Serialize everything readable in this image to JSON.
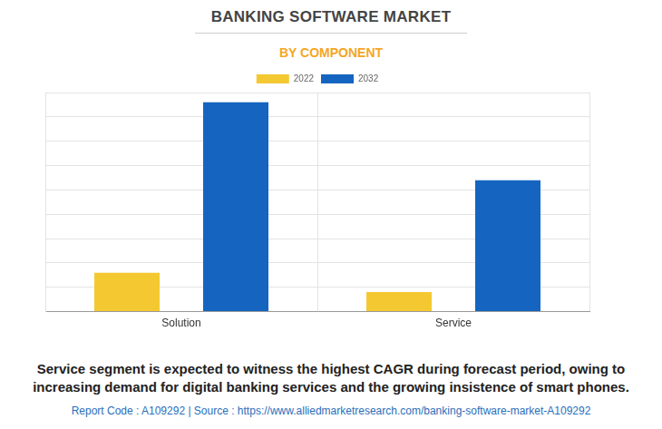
{
  "chart_data": {
    "type": "bar",
    "title": "BANKING SOFTWARE MARKET",
    "subtitle": "BY COMPONENT",
    "categories": [
      "Solution",
      "Service"
    ],
    "series": [
      {
        "name": "2022",
        "color": "#f4c831",
        "values": [
          1.6,
          0.8
        ]
      },
      {
        "name": "2032",
        "color": "#1565c0",
        "values": [
          8.6,
          5.4
        ]
      }
    ],
    "ylim": [
      0,
      9
    ],
    "yticks": [
      0,
      1,
      2,
      3,
      4,
      5,
      6,
      7,
      8,
      9
    ],
    "grid": true,
    "legend": "top",
    "tick_labels": "x",
    "caption": "Service segment is expected to witness the highest CAGR during forecast period, owing to increasing demand for digital banking services and the growing insistence of smart phones.",
    "footer": "Report Code : A109292  |  Source : https://www.alliedmarketresearch.com/banking-software-market-A109292"
  }
}
